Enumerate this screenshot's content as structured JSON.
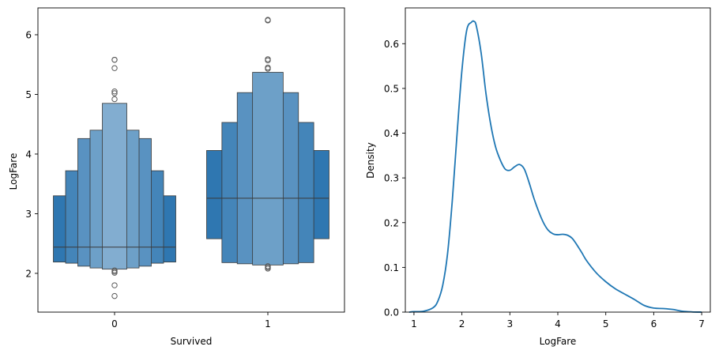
{
  "colors": {
    "box_base": "#2f77b1",
    "box_edge": "#3a3a3a",
    "kde_line": "#1f77b4",
    "outlier_edge": "#5a5a5a",
    "axis": "#000000"
  },
  "chart_data": [
    {
      "type": "boxen",
      "title": "",
      "xlabel": "Survived",
      "ylabel": "LogFare",
      "categories": [
        "0",
        "1"
      ],
      "ylim": [
        1.35,
        6.45
      ],
      "yticks": [
        2,
        3,
        4,
        5,
        6
      ],
      "groups": [
        {
          "category": "0",
          "median": 2.44,
          "boxes": [
            {
              "lo": 2.19,
              "hi": 3.3
            },
            {
              "lo": 2.17,
              "hi": 3.72
            },
            {
              "lo": 2.12,
              "hi": 4.26
            },
            {
              "lo": 2.09,
              "hi": 4.4
            },
            {
              "lo": 2.07,
              "hi": 4.85
            }
          ],
          "outliers": [
            1.62,
            1.8,
            2.01,
            2.03,
            2.05,
            4.92,
            5.02,
            5.05,
            5.44,
            5.58,
            5.58
          ]
        },
        {
          "category": "1",
          "median": 3.26,
          "boxes": [
            {
              "lo": 2.58,
              "hi": 4.06
            },
            {
              "lo": 2.18,
              "hi": 4.53
            },
            {
              "lo": 2.16,
              "hi": 5.03
            },
            {
              "lo": 2.14,
              "hi": 5.37
            }
          ],
          "outliers": [
            2.08,
            2.1,
            2.12,
            5.43,
            5.45,
            5.57,
            5.59,
            6.24,
            6.25
          ]
        }
      ]
    },
    {
      "type": "line",
      "title": "",
      "xlabel": "LogFare",
      "ylabel": "Density",
      "xlim": [
        0.82,
        7.18
      ],
      "ylim": [
        0,
        0.68
      ],
      "xticks": [
        1,
        2,
        3,
        4,
        5,
        6,
        7
      ],
      "yticks": [
        0.0,
        0.1,
        0.2,
        0.3,
        0.4,
        0.5,
        0.6
      ],
      "x": [
        0.9,
        1.0,
        1.2,
        1.4,
        1.5,
        1.6,
        1.7,
        1.8,
        1.9,
        2.0,
        2.1,
        2.2,
        2.25,
        2.3,
        2.4,
        2.5,
        2.6,
        2.7,
        2.8,
        2.9,
        3.0,
        3.1,
        3.2,
        3.3,
        3.4,
        3.5,
        3.6,
        3.7,
        3.8,
        3.9,
        4.0,
        4.1,
        4.2,
        4.3,
        4.4,
        4.5,
        4.6,
        4.8,
        5.0,
        5.2,
        5.4,
        5.6,
        5.8,
        6.0,
        6.2,
        6.4,
        6.6,
        6.8,
        7.0
      ],
      "y": [
        0.0,
        0.001,
        0.002,
        0.01,
        0.025,
        0.06,
        0.13,
        0.25,
        0.4,
        0.54,
        0.63,
        0.648,
        0.65,
        0.64,
        0.58,
        0.49,
        0.42,
        0.37,
        0.34,
        0.32,
        0.317,
        0.325,
        0.33,
        0.32,
        0.29,
        0.255,
        0.225,
        0.2,
        0.183,
        0.175,
        0.173,
        0.174,
        0.172,
        0.165,
        0.15,
        0.133,
        0.115,
        0.088,
        0.068,
        0.052,
        0.04,
        0.028,
        0.015,
        0.009,
        0.008,
        0.006,
        0.002,
        0.0005,
        0.0
      ]
    }
  ]
}
